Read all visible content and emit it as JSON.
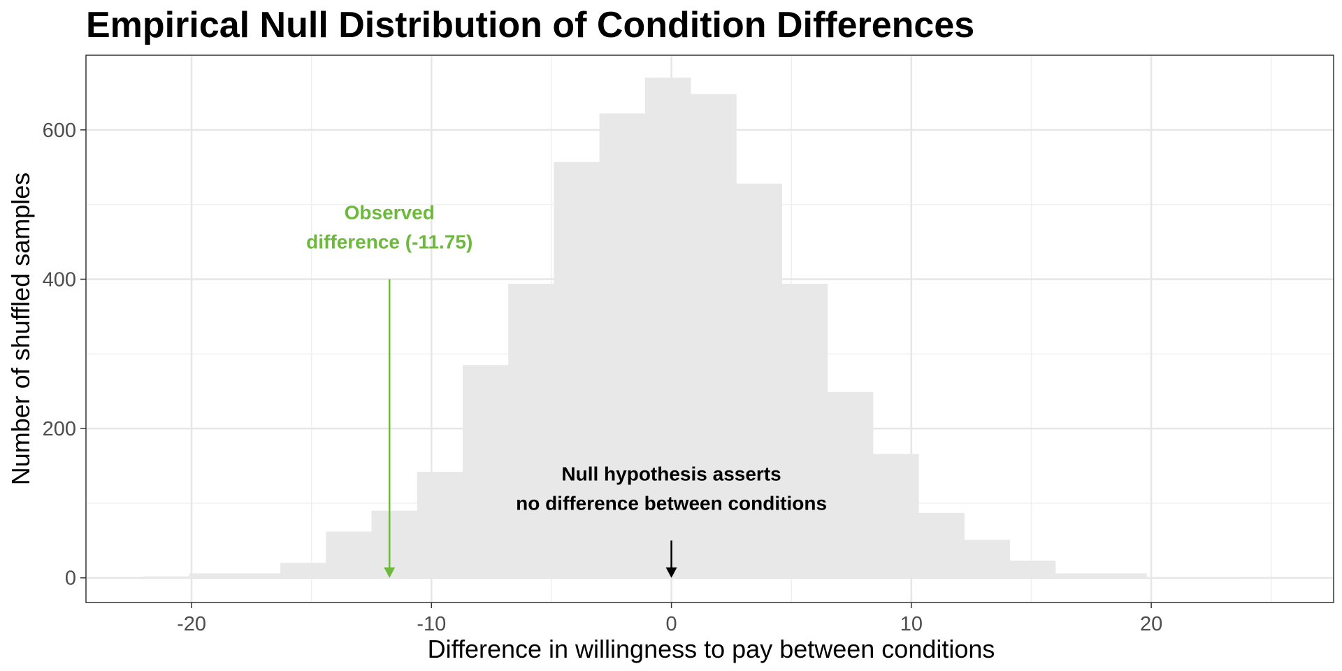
{
  "chart_data": {
    "type": "bar",
    "title": "Empirical Null Distribution of Condition Differences",
    "xlabel": "Difference in willingness to pay between conditions",
    "ylabel": "Number of shuffled samples",
    "xlim": [
      -24.4,
      27.6
    ],
    "ylim": [
      -33,
      700
    ],
    "xticks": [
      -20,
      -10,
      0,
      10,
      20
    ],
    "xtick_labels": [
      "-20",
      "-10",
      "0",
      "10",
      "20"
    ],
    "yticks": [
      0,
      200,
      400,
      600
    ],
    "ytick_labels": [
      "0",
      "200",
      "400",
      "600"
    ],
    "grid": true,
    "bin_edges": [
      -22.0,
      -20.1,
      -18.2,
      -16.3,
      -14.4,
      -12.5,
      -10.6,
      -8.7,
      -6.8,
      -4.9,
      -3.0,
      -1.1,
      0.8,
      2.7,
      4.6,
      6.5,
      8.4,
      10.3,
      12.2,
      14.1,
      16.0,
      17.9,
      19.8,
      21.7,
      23.6,
      25.5
    ],
    "counts": [
      2,
      6,
      6,
      20,
      62,
      90,
      142,
      285,
      394,
      557,
      622,
      670,
      648,
      528,
      394,
      249,
      166,
      87,
      51,
      23,
      6,
      6,
      1,
      1,
      0
    ],
    "bar_color": "#e8e8e8",
    "annotations": [
      {
        "id": "observed",
        "lines": [
          "Observed",
          "difference (-11.75)"
        ],
        "x": -11.75,
        "arrow_from_y": 400,
        "arrow_to_y": 0,
        "color": "#6cb93c"
      },
      {
        "id": "null",
        "lines": [
          "Null hypothesis asserts",
          "no difference between conditions"
        ],
        "x": 0,
        "arrow_from_y": 50,
        "arrow_to_y": 0,
        "color": "#000000"
      }
    ]
  }
}
